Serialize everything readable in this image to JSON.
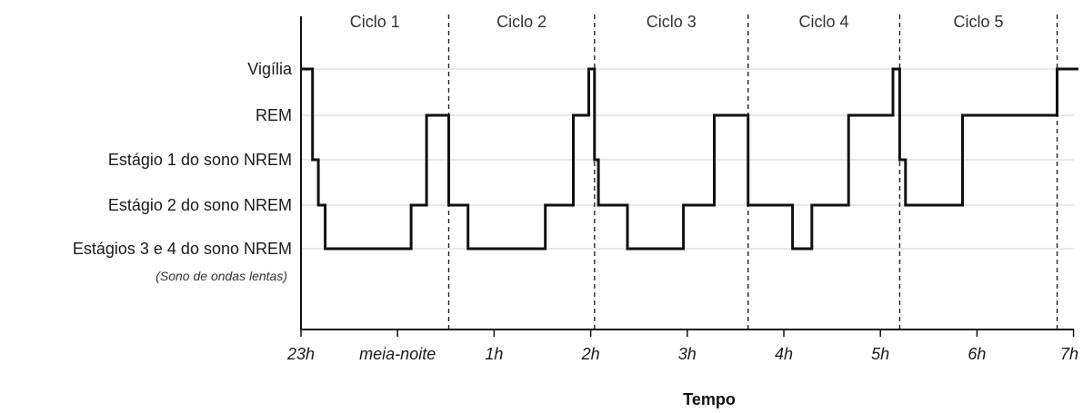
{
  "chart_data": {
    "type": "line",
    "xlabel": "Tempo",
    "ylabel": "",
    "x_ticks": [
      "23h",
      "meia-noite",
      "1h",
      "2h",
      "3h",
      "4h",
      "5h",
      "6h",
      "7h"
    ],
    "x_range_hours": [
      0,
      8.05
    ],
    "y_categories": [
      {
        "label": "Vigília",
        "level": 4
      },
      {
        "label": "REM",
        "level": 3
      },
      {
        "label": "Estágio 1 do sono NREM",
        "level": 2
      },
      {
        "label": "Estágio 2 do sono NREM",
        "level": 1
      },
      {
        "label": "Estágios 3 e 4 do sono NREM",
        "level": 0,
        "sublabel": "(Sono de ondas lentas)"
      }
    ],
    "cycles": [
      {
        "label": "Ciclo 1",
        "start_hour": 0.0,
        "end_hour": 1.53
      },
      {
        "label": "Ciclo 2",
        "start_hour": 1.53,
        "end_hour": 3.04
      },
      {
        "label": "Ciclo 3",
        "start_hour": 3.04,
        "end_hour": 4.63
      },
      {
        "label": "Ciclo 4",
        "start_hour": 4.63,
        "end_hour": 6.2
      },
      {
        "label": "Ciclo 5",
        "start_hour": 6.2,
        "end_hour": 7.83
      }
    ],
    "hypnogram": [
      [
        0.0,
        4
      ],
      [
        0.12,
        4
      ],
      [
        0.12,
        2
      ],
      [
        0.18,
        2
      ],
      [
        0.18,
        1
      ],
      [
        0.25,
        1
      ],
      [
        0.25,
        0
      ],
      [
        1.14,
        0
      ],
      [
        1.14,
        1
      ],
      [
        1.3,
        1
      ],
      [
        1.3,
        3
      ],
      [
        1.53,
        3
      ],
      [
        1.53,
        1
      ],
      [
        1.73,
        1
      ],
      [
        1.73,
        0
      ],
      [
        2.53,
        0
      ],
      [
        2.53,
        1
      ],
      [
        2.82,
        1
      ],
      [
        2.82,
        3
      ],
      [
        2.98,
        3
      ],
      [
        2.98,
        4
      ],
      [
        3.04,
        4
      ],
      [
        3.04,
        2
      ],
      [
        3.08,
        2
      ],
      [
        3.08,
        1
      ],
      [
        3.38,
        1
      ],
      [
        3.38,
        0
      ],
      [
        3.96,
        0
      ],
      [
        3.96,
        1
      ],
      [
        4.28,
        1
      ],
      [
        4.28,
        3
      ],
      [
        4.63,
        3
      ],
      [
        4.63,
        1
      ],
      [
        5.09,
        1
      ],
      [
        5.09,
        0
      ],
      [
        5.29,
        0
      ],
      [
        5.29,
        1
      ],
      [
        5.67,
        1
      ],
      [
        5.67,
        3
      ],
      [
        6.13,
        3
      ],
      [
        6.13,
        4
      ],
      [
        6.2,
        4
      ],
      [
        6.2,
        2
      ],
      [
        6.26,
        2
      ],
      [
        6.26,
        1
      ],
      [
        6.85,
        1
      ],
      [
        6.85,
        3
      ],
      [
        7.83,
        3
      ],
      [
        7.83,
        4
      ],
      [
        8.05,
        4
      ]
    ],
    "grid": true,
    "legend": "none"
  }
}
